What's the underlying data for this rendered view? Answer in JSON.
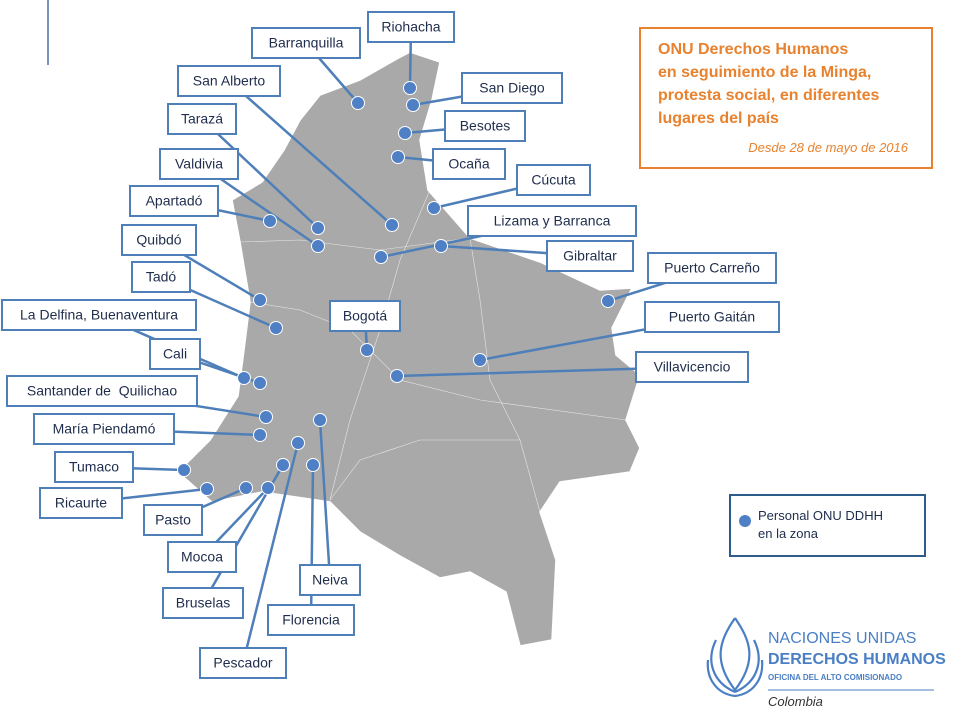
{
  "header": {
    "title_lines": [
      "ONU Derechos Humanos",
      "en seguimiento de la Minga,",
      "protesta social, en diferentes",
      "lugares del país"
    ],
    "date": "Desde 28 de mayo de 2016"
  },
  "places": [
    {
      "label": "Riohacha"
    },
    {
      "label": "Barranquilla"
    },
    {
      "label": "San Alberto"
    },
    {
      "label": "San Diego"
    },
    {
      "label": "Tarazá"
    },
    {
      "label": "Besotes"
    },
    {
      "label": "Valdivia"
    },
    {
      "label": "Ocaña"
    },
    {
      "label": "Cúcuta"
    },
    {
      "label": "Apartadó"
    },
    {
      "label": "Lizama y Barranca"
    },
    {
      "label": "Quibdó"
    },
    {
      "label": "Gibraltar"
    },
    {
      "label": "Puerto Carreño"
    },
    {
      "label": "Tadó"
    },
    {
      "label": "La Delfina, Buenaventura"
    },
    {
      "label": "Bogotá"
    },
    {
      "label": "Puerto Gaitán"
    },
    {
      "label": "Villavicencio"
    },
    {
      "label": "Cali"
    },
    {
      "label": "Santander de  Quilichao"
    },
    {
      "label": "María Piendamó"
    },
    {
      "label": "Neiva"
    },
    {
      "label": "Tumaco"
    },
    {
      "label": "Ricaurte"
    },
    {
      "label": "Pasto"
    },
    {
      "label": "Mocoa"
    },
    {
      "label": "Bruselas"
    },
    {
      "label": "Florencia"
    },
    {
      "label": "Pescador"
    }
  ],
  "legend": {
    "text_lines": [
      "Personal ONU DDHH",
      "en la zona"
    ]
  },
  "logo": {
    "line1": "NACIONES UNIDAS",
    "line2": "DERECHOS HUMANOS",
    "line3": "OFICINA DEL ALTO COMISIONADO",
    "country": "Colombia"
  }
}
